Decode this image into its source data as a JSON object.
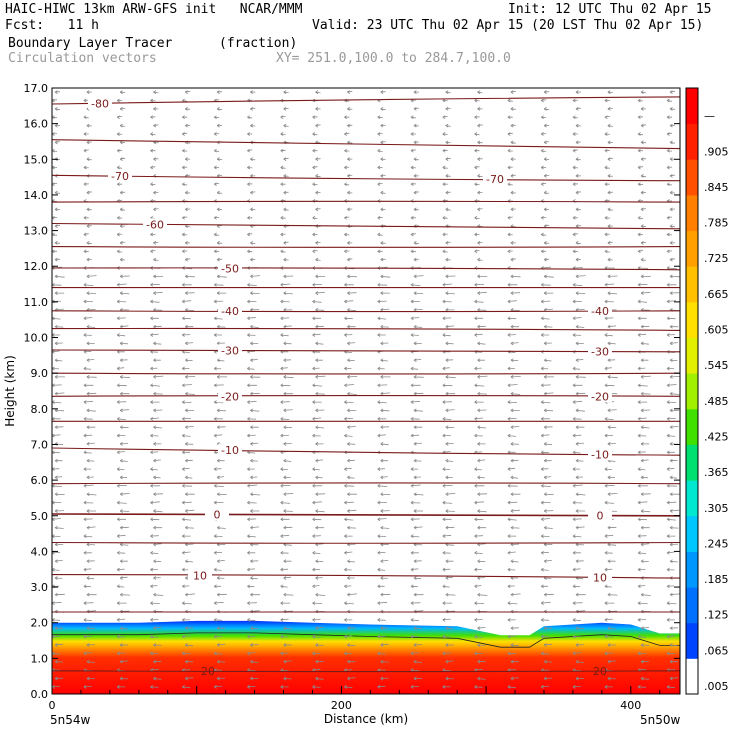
{
  "header": {
    "left1": "HAIC-HIWC 13km ARW-GFS init   NCAR/MMM",
    "left2": "Fcst:   11 h",
    "right1": "Init: 12 UTC Thu 02 Apr 15",
    "right2": "Valid: 23 UTC Thu 02 Apr 15 (20 LST Thu 02 Apr 15)",
    "field1": "Boundary Layer Tracer",
    "field1_units": "(fraction)",
    "field2": "Circulation vectors",
    "xy": "XY= 251.0,100.0 to 284.7,100.0"
  },
  "chart_data": {
    "type": "heatmap",
    "title": "Boundary Layer Tracer",
    "units": "(fraction)",
    "xlabel": "Distance (km)",
    "ylabel": "Height (km)",
    "xlim": [
      0,
      434
    ],
    "ylim": [
      0,
      17
    ],
    "xticks": [
      0,
      200,
      400
    ],
    "yticks": [
      "0.0",
      "1.0",
      "2.0",
      "3.0",
      "4.0",
      "5.0",
      "6.0",
      "7.0",
      "8.0",
      "9.0",
      "10.0",
      "11.0",
      "12.0",
      "13.0",
      "14.0",
      "15.0",
      "16.0",
      "17.0"
    ],
    "x_endpoints": {
      "left": "5n54w",
      "right": "5n50w"
    },
    "tracer_top_km": [
      [
        0,
        2.0
      ],
      [
        40,
        2.0
      ],
      [
        60,
        2.0
      ],
      [
        100,
        2.05
      ],
      [
        140,
        2.05
      ],
      [
        180,
        2.0
      ],
      [
        220,
        1.95
      ],
      [
        280,
        1.9
      ],
      [
        310,
        1.65
      ],
      [
        330,
        1.65
      ],
      [
        340,
        1.9
      ],
      [
        380,
        2.0
      ],
      [
        400,
        1.95
      ],
      [
        420,
        1.7
      ],
      [
        434,
        1.7
      ]
    ],
    "isotherms_c": [
      {
        "label": "-80",
        "z": [
          16.55,
          16.75
        ]
      },
      {
        "label": "",
        "z": [
          15.55,
          15.3
        ]
      },
      {
        "label": "-70",
        "z": [
          14.55,
          14.4
        ]
      },
      {
        "label": "",
        "z": [
          13.8,
          13.8
        ]
      },
      {
        "label": "-60",
        "z": [
          13.2,
          13.05
        ]
      },
      {
        "label": "",
        "z": [
          12.55,
          12.55
        ]
      },
      {
        "label": "-50",
        "z": [
          11.95,
          11.9
        ]
      },
      {
        "label": "",
        "z": [
          11.4,
          11.4
        ]
      },
      {
        "label": "-40",
        "z": [
          10.75,
          10.75
        ]
      },
      {
        "label": "",
        "z": [
          10.25,
          10.2
        ]
      },
      {
        "label": "-30",
        "z": [
          9.65,
          9.6
        ]
      },
      {
        "label": "",
        "z": [
          9.0,
          9.0
        ]
      },
      {
        "label": "-20",
        "z": [
          8.35,
          8.35
        ]
      },
      {
        "label": "",
        "z": [
          7.65,
          7.65
        ]
      },
      {
        "label": "-10",
        "z": [
          6.9,
          6.7
        ]
      },
      {
        "label": "",
        "z": [
          5.9,
          5.9
        ]
      },
      {
        "label": "0",
        "z": [
          5.05,
          5.0
        ]
      },
      {
        "label": "",
        "z": [
          4.25,
          4.25
        ]
      },
      {
        "label": "10",
        "z": [
          3.35,
          3.25
        ]
      },
      {
        "label": "",
        "z": [
          2.3,
          2.3
        ]
      },
      {
        "label": "20",
        "z": [
          0.65,
          0.65
        ]
      }
    ],
    "colorbar": {
      "labels": [
        ".005",
        ".065",
        ".125",
        ".185",
        ".245",
        ".305",
        ".365",
        ".425",
        ".485",
        ".545",
        ".605",
        ".665",
        ".725",
        ".785",
        ".845",
        ".905",
        "—"
      ],
      "colors": [
        "#ffffff",
        "#0044ff",
        "#0070ff",
        "#0098ff",
        "#00c8ff",
        "#00e8d0",
        "#00e070",
        "#40e000",
        "#a0f000",
        "#e0f000",
        "#ffe000",
        "#ffc000",
        "#ffa000",
        "#ff8000",
        "#ff5000",
        "#ff2000",
        "#ff0000"
      ]
    }
  }
}
